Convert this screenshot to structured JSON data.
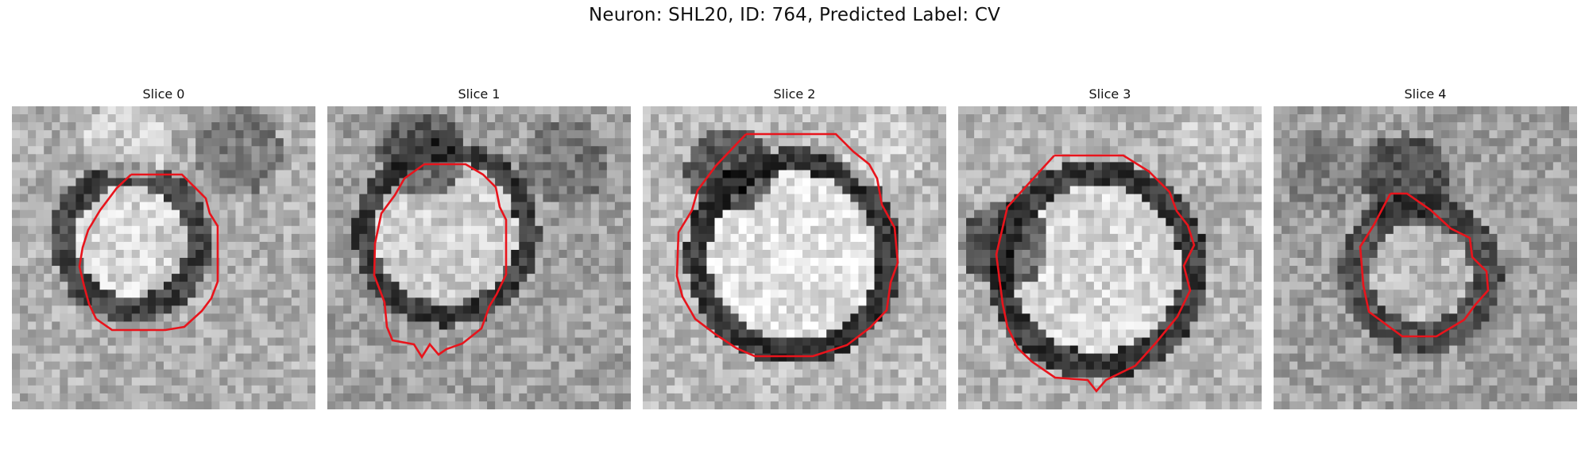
{
  "figure": {
    "title": "Neuron: SHL20, ID: 764, Predicted Label: CV"
  },
  "panels": [
    {
      "title": "Slice 0"
    },
    {
      "title": "Slice 1"
    },
    {
      "title": "Slice 2"
    },
    {
      "title": "Slice 3"
    },
    {
      "title": "Slice 4"
    }
  ],
  "style": {
    "contour_color": "#e8141c",
    "colormap": "grayscale"
  }
}
